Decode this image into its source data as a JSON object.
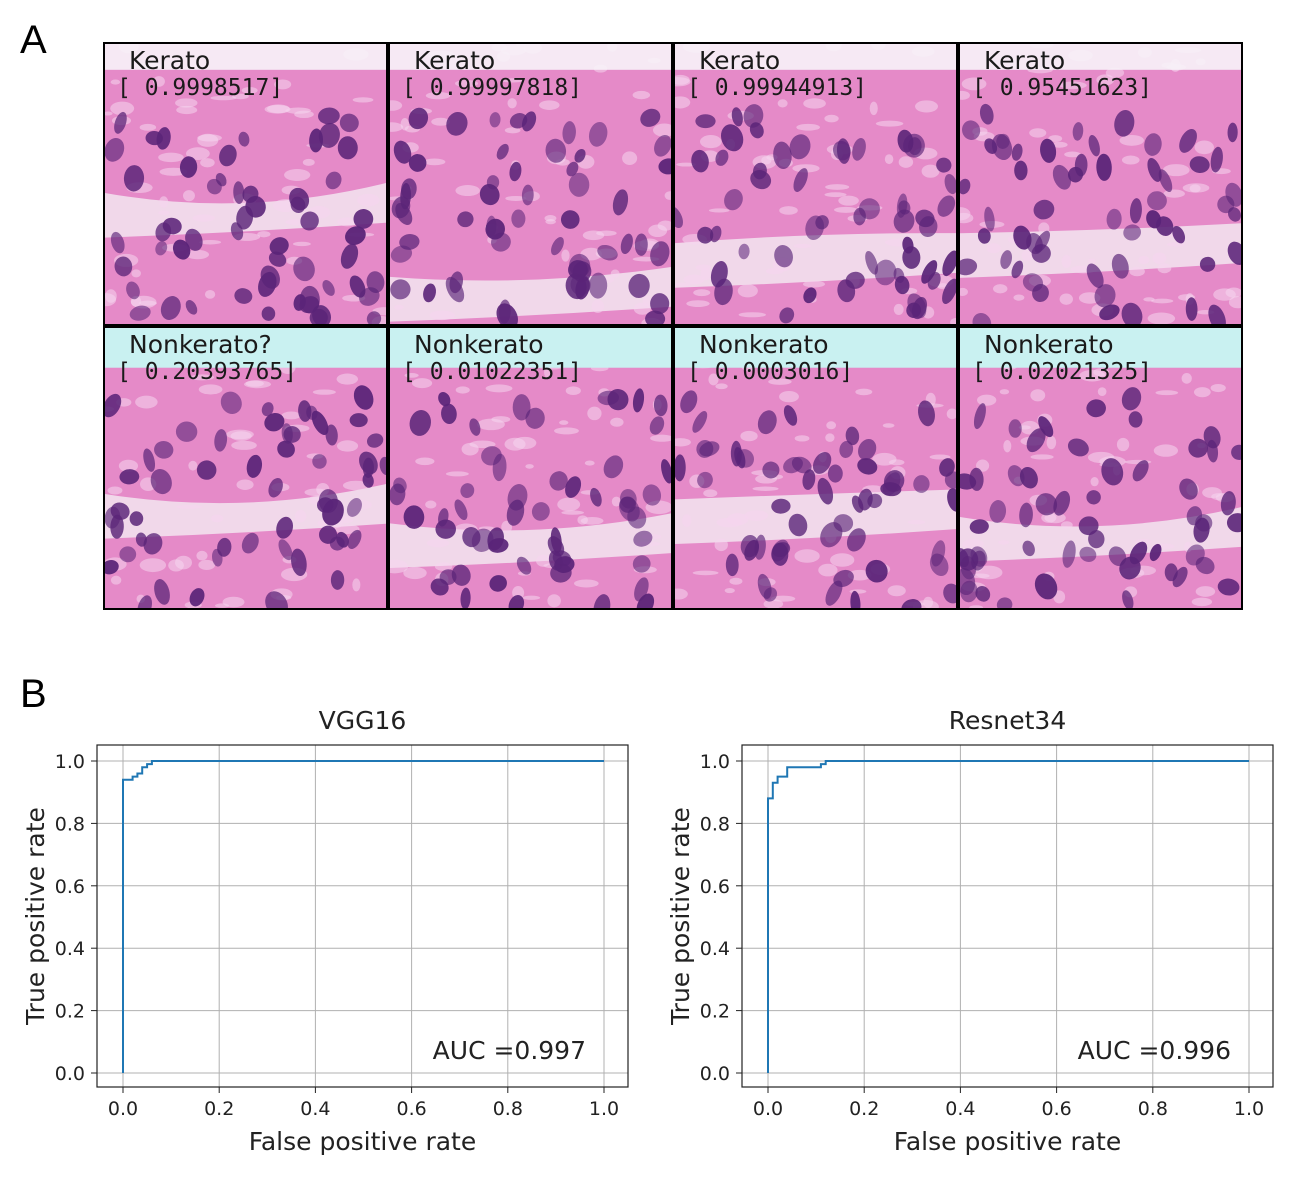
{
  "panel_letters": {
    "a": "A",
    "b": "B"
  },
  "tiles": [
    {
      "label": "Kerato",
      "score": "[ 0.9998517]",
      "tint": "top"
    },
    {
      "label": "Kerato",
      "score": "[ 0.99997818]",
      "tint": "top"
    },
    {
      "label": "Kerato",
      "score": "[ 0.99944913]",
      "tint": "top"
    },
    {
      "label": "Kerato",
      "score": "[ 0.95451623]",
      "tint": "top"
    },
    {
      "label": "Nonkerato?",
      "score": "[ 0.20393765]",
      "tint": "bottom"
    },
    {
      "label": "Nonkerato",
      "score": "[ 0.01022351]",
      "tint": "bottom"
    },
    {
      "label": "Nonkerato",
      "score": "[ 0.0003016]",
      "tint": "bottom"
    },
    {
      "label": "Nonkerato",
      "score": "[ 0.02021325]",
      "tint": "bottom"
    }
  ],
  "colors": {
    "roc_line": "#1f77b4",
    "grid": "#b0b0b0",
    "tissue_pink": "#e58ac8",
    "nucleus_purple": "#5a2478",
    "background_white": "#f4f1f6",
    "cyan_tint": "#c9f1f1"
  },
  "chart_data": [
    {
      "type": "line",
      "title": "VGG16",
      "xlabel": "False positive rate",
      "ylabel": "True positive rate",
      "xlim": [
        0,
        1
      ],
      "ylim": [
        0,
        1
      ],
      "grid": true,
      "xticks": [
        "0.0",
        "0.2",
        "0.4",
        "0.6",
        "0.8",
        "1.0"
      ],
      "yticks": [
        "0.0",
        "0.2",
        "0.4",
        "0.6",
        "0.8",
        "1.0"
      ],
      "annotation": "AUC =0.997",
      "series": [
        {
          "x": [
            0.0,
            0.0,
            0.0,
            0.01,
            0.01,
            0.02,
            0.02,
            0.03,
            0.03,
            0.04,
            0.04,
            0.05,
            0.05,
            0.06,
            0.06,
            1.0
          ],
          "y": [
            0.0,
            0.01,
            0.94,
            0.94,
            0.94,
            0.94,
            0.95,
            0.95,
            0.96,
            0.96,
            0.98,
            0.98,
            0.99,
            0.99,
            1.0,
            1.0
          ]
        }
      ]
    },
    {
      "type": "line",
      "title": "Resnet34",
      "xlabel": "False positive rate",
      "ylabel": "True positive rate",
      "xlim": [
        0,
        1
      ],
      "ylim": [
        0,
        1
      ],
      "grid": true,
      "xticks": [
        "0.0",
        "0.2",
        "0.4",
        "0.6",
        "0.8",
        "1.0"
      ],
      "yticks": [
        "0.0",
        "0.2",
        "0.4",
        "0.6",
        "0.8",
        "1.0"
      ],
      "annotation": "AUC =0.996",
      "series": [
        {
          "x": [
            0.0,
            0.0,
            0.0,
            0.01,
            0.01,
            0.02,
            0.02,
            0.04,
            0.04,
            0.11,
            0.11,
            0.12,
            0.12,
            1.0
          ],
          "y": [
            0.0,
            0.01,
            0.88,
            0.88,
            0.93,
            0.93,
            0.95,
            0.95,
            0.98,
            0.98,
            0.99,
            0.99,
            1.0,
            1.0
          ]
        }
      ]
    }
  ]
}
